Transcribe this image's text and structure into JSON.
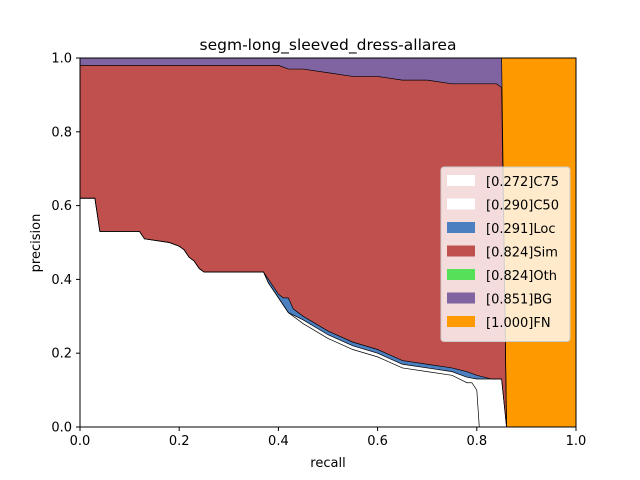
{
  "chart_data": {
    "type": "area",
    "title": "segm-long_sleeved_dress-allarea",
    "xlabel": "recall",
    "ylabel": "precision",
    "xlim": [
      0,
      1
    ],
    "ylim": [
      0,
      1
    ],
    "xticks": [
      "0.0",
      "0.2",
      "0.4",
      "0.6",
      "0.8",
      "1.0"
    ],
    "yticks": [
      "0.0",
      "0.2",
      "0.4",
      "0.6",
      "0.8",
      "1.0"
    ],
    "grid": false,
    "legend_position": "center-right",
    "legend": [
      {
        "label": "[0.272]C75",
        "color": "#ffffff"
      },
      {
        "label": "[0.290]C50",
        "color": "#ffffff"
      },
      {
        "label": "[0.291]Loc",
        "color": "#4c7fbf"
      },
      {
        "label": "[0.824]Sim",
        "color": "#c0504d"
      },
      {
        "label": "[0.824]Oth",
        "color": "#55e05a"
      },
      {
        "label": "[0.851]BG",
        "color": "#8064a2"
      },
      {
        "label": "[1.000]FN",
        "color": "#ff9900"
      }
    ],
    "series": [
      {
        "name": "C75",
        "x": [
          0.0,
          0.03,
          0.04,
          0.12,
          0.13,
          0.18,
          0.2,
          0.21,
          0.22,
          0.23,
          0.24,
          0.25,
          0.26,
          0.37,
          0.38,
          0.39,
          0.4,
          0.42,
          0.45,
          0.5,
          0.55,
          0.6,
          0.65,
          0.7,
          0.75,
          0.78,
          0.79,
          0.8,
          0.805
        ],
        "y": [
          0.62,
          0.62,
          0.53,
          0.53,
          0.51,
          0.5,
          0.49,
          0.48,
          0.46,
          0.45,
          0.43,
          0.42,
          0.42,
          0.42,
          0.39,
          0.37,
          0.35,
          0.31,
          0.28,
          0.24,
          0.21,
          0.19,
          0.16,
          0.15,
          0.14,
          0.12,
          0.12,
          0.1,
          0.0
        ]
      },
      {
        "name": "C50",
        "x": [
          0.0,
          0.03,
          0.04,
          0.12,
          0.13,
          0.18,
          0.2,
          0.21,
          0.22,
          0.23,
          0.24,
          0.25,
          0.26,
          0.37,
          0.38,
          0.39,
          0.4,
          0.42,
          0.45,
          0.5,
          0.55,
          0.6,
          0.65,
          0.7,
          0.75,
          0.78,
          0.8,
          0.83,
          0.84,
          0.85,
          0.86
        ],
        "y": [
          0.62,
          0.62,
          0.53,
          0.53,
          0.51,
          0.5,
          0.49,
          0.48,
          0.46,
          0.45,
          0.43,
          0.42,
          0.42,
          0.42,
          0.39,
          0.37,
          0.35,
          0.31,
          0.29,
          0.25,
          0.22,
          0.2,
          0.17,
          0.16,
          0.15,
          0.135,
          0.13,
          0.13,
          0.13,
          0.13,
          0.0
        ]
      },
      {
        "name": "Loc",
        "x": [
          0.0,
          0.03,
          0.04,
          0.12,
          0.13,
          0.18,
          0.2,
          0.21,
          0.22,
          0.23,
          0.24,
          0.25,
          0.26,
          0.37,
          0.38,
          0.39,
          0.4,
          0.41,
          0.42,
          0.43,
          0.45,
          0.5,
          0.55,
          0.6,
          0.65,
          0.7,
          0.75,
          0.78,
          0.8,
          0.83,
          0.85,
          0.86
        ],
        "y": [
          0.62,
          0.62,
          0.53,
          0.53,
          0.51,
          0.5,
          0.49,
          0.48,
          0.46,
          0.45,
          0.43,
          0.42,
          0.42,
          0.42,
          0.4,
          0.38,
          0.36,
          0.35,
          0.35,
          0.32,
          0.3,
          0.26,
          0.23,
          0.21,
          0.18,
          0.17,
          0.16,
          0.15,
          0.14,
          0.13,
          0.13,
          0.0
        ]
      },
      {
        "name": "Sim",
        "x": [
          0.0,
          0.01,
          0.1,
          0.2,
          0.3,
          0.35,
          0.4,
          0.42,
          0.45,
          0.5,
          0.55,
          0.6,
          0.65,
          0.7,
          0.75,
          0.8,
          0.84,
          0.85,
          0.86
        ],
        "y": [
          0.98,
          0.98,
          0.98,
          0.98,
          0.98,
          0.98,
          0.98,
          0.97,
          0.97,
          0.96,
          0.95,
          0.95,
          0.94,
          0.94,
          0.93,
          0.93,
          0.93,
          0.92,
          0.0
        ]
      },
      {
        "name": "Oth",
        "x": [
          0.0,
          0.01,
          0.1,
          0.2,
          0.3,
          0.35,
          0.4,
          0.42,
          0.45,
          0.5,
          0.55,
          0.6,
          0.65,
          0.7,
          0.75,
          0.8,
          0.84,
          0.85,
          0.86
        ],
        "y": [
          0.98,
          0.98,
          0.98,
          0.98,
          0.98,
          0.98,
          0.98,
          0.97,
          0.97,
          0.96,
          0.95,
          0.95,
          0.94,
          0.94,
          0.93,
          0.93,
          0.93,
          0.92,
          0.0
        ]
      },
      {
        "name": "BG",
        "x": [
          0.0,
          0.1,
          0.2,
          0.3,
          0.4,
          0.5,
          0.6,
          0.7,
          0.8,
          0.85,
          0.86
        ],
        "y": [
          1.0,
          1.0,
          1.0,
          1.0,
          1.0,
          1.0,
          1.0,
          1.0,
          1.0,
          1.0,
          0.0
        ]
      },
      {
        "name": "FN",
        "x": [
          0.0,
          0.85,
          0.85,
          1.0
        ],
        "y": [
          1.0,
          1.0,
          1.0,
          1.0
        ]
      }
    ]
  }
}
